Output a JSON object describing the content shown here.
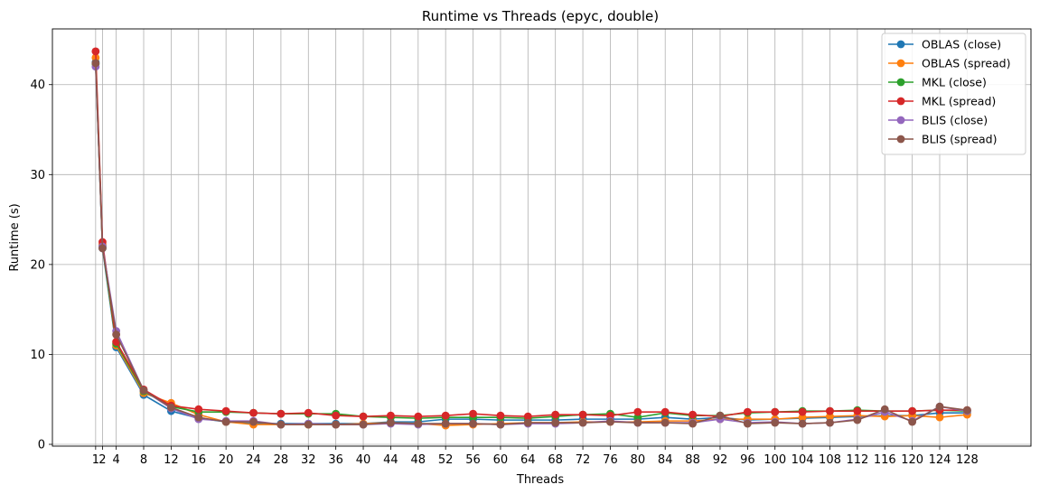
{
  "chart_data": {
    "type": "line",
    "title": "Runtime vs Threads (epyc, double)",
    "xlabel": "Threads",
    "ylabel": "Runtime (s)",
    "grid": true,
    "legend_position": "top-right",
    "xlim": [
      -5.3,
      137.3
    ],
    "ylim": [
      -0.2,
      46.2
    ],
    "x_ticks": [
      1,
      2,
      4,
      8,
      12,
      16,
      20,
      24,
      28,
      32,
      36,
      40,
      44,
      48,
      52,
      56,
      60,
      64,
      68,
      72,
      76,
      80,
      84,
      88,
      92,
      96,
      100,
      104,
      108,
      112,
      116,
      120,
      124,
      128
    ],
    "y_ticks": [
      0,
      10,
      20,
      30,
      40
    ],
    "x": [
      1,
      2,
      4,
      8,
      12,
      16,
      20,
      24,
      28,
      32,
      36,
      40,
      44,
      48,
      52,
      56,
      60,
      64,
      68,
      72,
      76,
      80,
      84,
      88,
      92,
      96,
      100,
      104,
      108,
      112,
      116,
      120,
      124,
      128
    ],
    "series": [
      {
        "name": "OBLAS (close)",
        "color": "#1f77b4",
        "values": [
          42.5,
          21.8,
          10.8,
          5.5,
          3.7,
          2.9,
          2.5,
          2.3,
          2.3,
          2.3,
          2.3,
          2.3,
          2.5,
          2.5,
          2.8,
          2.8,
          2.7,
          2.7,
          2.7,
          2.8,
          2.8,
          2.8,
          3.0,
          2.8,
          3.0,
          2.7,
          2.8,
          2.9,
          3.0,
          3.1,
          3.2,
          3.2,
          3.5,
          3.5
        ]
      },
      {
        "name": "OBLAS (spread)",
        "color": "#ff7f0e",
        "values": [
          43.0,
          22.2,
          11.0,
          5.7,
          4.6,
          3.3,
          2.5,
          2.2,
          2.2,
          2.2,
          2.2,
          2.3,
          2.4,
          2.3,
          2.1,
          2.2,
          2.3,
          2.4,
          2.4,
          2.5,
          2.5,
          2.5,
          2.6,
          2.6,
          2.8,
          2.8,
          2.8,
          3.0,
          3.1,
          3.2,
          3.1,
          3.2,
          3.0,
          3.3
        ]
      },
      {
        "name": "MKL (close)",
        "color": "#2ca02c",
        "values": [
          42.3,
          22.0,
          11.2,
          5.9,
          4.2,
          3.6,
          3.6,
          3.5,
          3.4,
          3.4,
          3.4,
          3.1,
          3.0,
          2.9,
          3.0,
          3.0,
          3.0,
          2.9,
          3.1,
          3.3,
          3.4,
          3.0,
          3.5,
          3.2,
          3.2,
          3.5,
          3.6,
          3.7,
          3.7,
          3.8,
          3.7,
          3.7,
          3.8,
          3.7
        ]
      },
      {
        "name": "MKL (spread)",
        "color": "#d62728",
        "values": [
          43.7,
          22.5,
          11.4,
          6.1,
          4.3,
          3.9,
          3.7,
          3.5,
          3.4,
          3.5,
          3.2,
          3.1,
          3.2,
          3.1,
          3.2,
          3.4,
          3.2,
          3.1,
          3.3,
          3.3,
          3.2,
          3.6,
          3.6,
          3.3,
          3.1,
          3.6,
          3.6,
          3.6,
          3.7,
          3.7,
          3.7,
          3.7,
          3.8,
          3.8
        ]
      },
      {
        "name": "BLIS (close)",
        "color": "#9467bd",
        "values": [
          42.0,
          22.0,
          12.6,
          6.0,
          4.0,
          2.8,
          2.6,
          2.6,
          2.2,
          2.3,
          2.2,
          2.2,
          2.3,
          2.2,
          2.3,
          2.3,
          2.2,
          2.3,
          2.3,
          2.4,
          2.6,
          2.4,
          2.4,
          2.4,
          2.8,
          2.4,
          2.5,
          2.3,
          2.4,
          2.8,
          3.6,
          2.6,
          4.2,
          3.7
        ]
      },
      {
        "name": "BLIS (spread)",
        "color": "#8c564b",
        "values": [
          42.4,
          21.8,
          12.2,
          6.0,
          4.1,
          3.0,
          2.5,
          2.5,
          2.2,
          2.2,
          2.2,
          2.2,
          2.4,
          2.3,
          2.3,
          2.3,
          2.2,
          2.4,
          2.4,
          2.4,
          2.5,
          2.4,
          2.4,
          2.3,
          3.2,
          2.3,
          2.4,
          2.3,
          2.4,
          2.7,
          3.9,
          2.5,
          4.2,
          3.8
        ]
      }
    ]
  }
}
